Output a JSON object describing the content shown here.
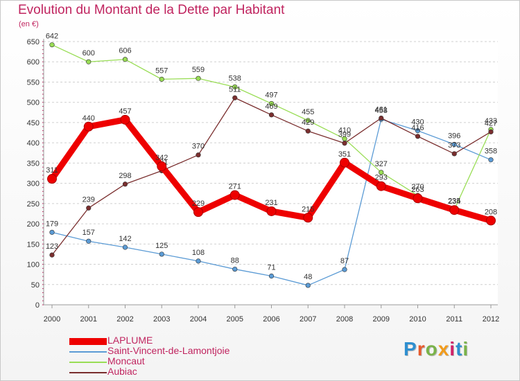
{
  "header": {
    "title": "Evolution du Montant de la Dette par Habitant",
    "unit": "(en €)"
  },
  "brand": {
    "text": "Proxiti",
    "letter_colors": [
      "#2e8fd0",
      "#e85a2c",
      "#7ab34a",
      "#f29c1c",
      "#d0246a",
      "#2e8fd0",
      "#7ab34a"
    ]
  },
  "chart_data": {
    "type": "line",
    "title": "Evolution du Montant de la Dette par Habitant",
    "ylabel": "(en €)",
    "xlabel": "",
    "x": [
      "2000",
      "2001",
      "2002",
      "2003",
      "2004",
      "2005",
      "2006",
      "2007",
      "2008",
      "2009",
      "2010",
      "2011",
      "2012"
    ],
    "ylim": [
      0,
      650
    ],
    "yticks": [
      "0",
      "50",
      "100",
      "150",
      "200",
      "250",
      "300",
      "350",
      "400",
      "450",
      "500",
      "550",
      "600",
      "650"
    ],
    "grid": "horizontal dashed",
    "legend_position": "bottom-left",
    "series": [
      {
        "name": "LAPLUME",
        "color": "#ee0000",
        "values": [
          311,
          440,
          457,
          342,
          229,
          271,
          231,
          215,
          351,
          293,
          263,
          234,
          208
        ],
        "labels": [
          "311",
          "440",
          "457",
          "342",
          "229",
          "271",
          "231",
          "215",
          "351",
          "293",
          "263",
          "234",
          "208"
        ]
      },
      {
        "name": "Saint-Vincent-de-Lamontjoie",
        "color": "#5b9bd5",
        "values": [
          179,
          157,
          142,
          125,
          108,
          88,
          71,
          48,
          87,
          458,
          430,
          396,
          358
        ],
        "labels": [
          "179",
          "157",
          "142",
          "125",
          "108",
          "88",
          "71",
          "48",
          "87",
          "458",
          "430",
          "396",
          "358"
        ]
      },
      {
        "name": "Moncaut",
        "color": "#99dd55",
        "values": [
          642,
          600,
          606,
          557,
          559,
          538,
          497,
          455,
          410,
          327,
          270,
          235,
          433
        ],
        "labels": [
          "642",
          "600",
          "606",
          "557",
          "559",
          "538",
          "497",
          "455",
          "410",
          "327",
          "270",
          "235",
          "433"
        ]
      },
      {
        "name": "Aubiac",
        "color": "#7a2e2e",
        "values": [
          123,
          239,
          298,
          331,
          370,
          511,
          469,
          429,
          399,
          461,
          416,
          373,
          427
        ],
        "labels": [
          "123",
          "239",
          "298",
          "331",
          "370",
          "511",
          "469",
          "429",
          "399",
          "461",
          "416",
          "373",
          "427"
        ]
      }
    ]
  }
}
